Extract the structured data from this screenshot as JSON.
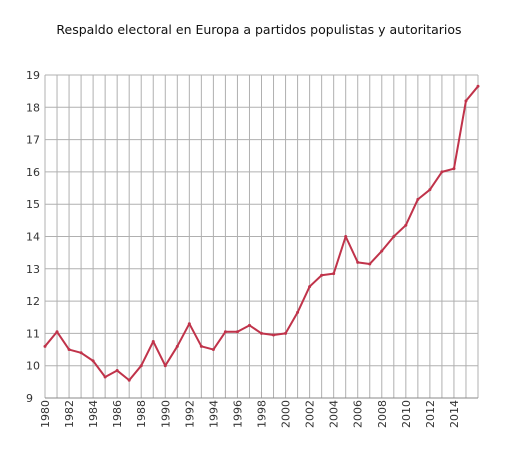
{
  "chart_data": {
    "type": "line",
    "title": "Respaldo electoral en Europa a partidos populistas y autoritarios",
    "xlabel": "",
    "ylabel": "",
    "ylim": [
      9,
      19
    ],
    "xlim": [
      1980,
      2016
    ],
    "y_ticks": [
      "9",
      "10",
      "11",
      "12",
      "13",
      "14",
      "15",
      "16",
      "17",
      "18",
      "19"
    ],
    "x_ticks": [
      "1980",
      "1982",
      "1984",
      "1986",
      "1988",
      "1990",
      "1992",
      "1994",
      "1996",
      "1998",
      "2000",
      "2002",
      "2004",
      "2006",
      "2008",
      "2010",
      "2012",
      "2014"
    ],
    "grid": true,
    "colors": {
      "line": "#c0334a",
      "grid": "#b0b0b0"
    },
    "series": [
      {
        "x": [
          1980,
          1981,
          1982,
          1983,
          1984,
          1985,
          1986,
          1987,
          1988,
          1989,
          1990,
          1991,
          1992,
          1993,
          1994,
          1995,
          1996,
          1997,
          1998,
          1999,
          2000,
          2001,
          2002,
          2003,
          2004,
          2005,
          2006,
          2007,
          2008,
          2009,
          2010,
          2011,
          2012,
          2013,
          2014,
          2015,
          2016
        ],
        "values": [
          10.6,
          11.05,
          10.5,
          10.4,
          10.15,
          9.65,
          9.85,
          9.55,
          10.0,
          10.75,
          10.0,
          10.6,
          11.3,
          10.6,
          10.5,
          11.05,
          11.05,
          11.25,
          11.0,
          10.95,
          11.0,
          11.65,
          12.45,
          12.8,
          12.85,
          14.0,
          13.2,
          13.15,
          13.55,
          14.0,
          14.35,
          15.15,
          15.45,
          16.0,
          16.1,
          18.2,
          18.65
        ]
      }
    ]
  }
}
